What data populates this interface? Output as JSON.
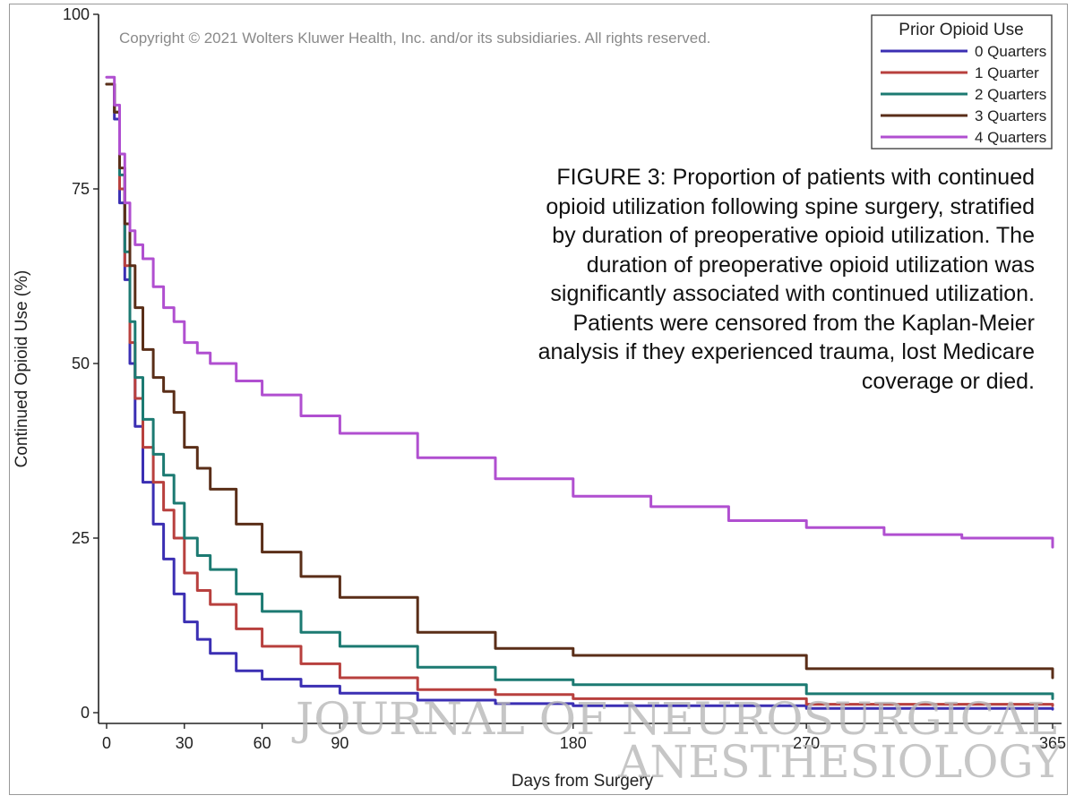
{
  "copyright": "Copyright © 2021 Wolters Kluwer Health, Inc. and/or its subsidiaries.  All rights reserved.",
  "caption": "FIGURE 3: Proportion of patients with continued opioid utilization following spine surgery, stratified by duration of preoperative opioid utilization. The duration of preoperative opioid utilization was significantly associated with continued utilization. Patients were censored from the Kaplan-Meier analysis if they experienced trauma, lost Medicare coverage or died.",
  "watermark": {
    "line1": "JOURNAL OF NEUROSURGICAL",
    "line2": "ANESTHESIOLOGY"
  },
  "chart_data": {
    "type": "line",
    "xlabel": "Days from Surgery",
    "ylabel": "Continued Opioid Use (%)",
    "xlim": [
      0,
      365
    ],
    "ylim": [
      0,
      100
    ],
    "xticks": [
      0,
      30,
      60,
      90,
      180,
      270,
      365
    ],
    "yticks": [
      0,
      25,
      50,
      75,
      100
    ],
    "grid": false,
    "legend": {
      "title": "Prior Opioid Use",
      "placement": "top-right"
    },
    "series": [
      {
        "name": "0 Quarters",
        "color": "#3b2fb3",
        "points": [
          [
            0,
            90
          ],
          [
            3,
            85
          ],
          [
            5,
            73
          ],
          [
            7,
            62
          ],
          [
            9,
            50
          ],
          [
            11,
            41
          ],
          [
            14,
            33
          ],
          [
            18,
            27
          ],
          [
            22,
            22
          ],
          [
            26,
            17
          ],
          [
            30,
            13
          ],
          [
            35,
            10.5
          ],
          [
            40,
            8.5
          ],
          [
            50,
            6
          ],
          [
            60,
            4.8
          ],
          [
            75,
            3.8
          ],
          [
            90,
            2.8
          ],
          [
            120,
            1.8
          ],
          [
            150,
            1.3
          ],
          [
            180,
            1.0
          ],
          [
            270,
            0.6
          ],
          [
            365,
            0.5
          ]
        ]
      },
      {
        "name": "1 Quarter",
        "color": "#b8403e",
        "points": [
          [
            0,
            90
          ],
          [
            3,
            86
          ],
          [
            5,
            75
          ],
          [
            7,
            64
          ],
          [
            9,
            53
          ],
          [
            11,
            45
          ],
          [
            14,
            38
          ],
          [
            18,
            33
          ],
          [
            22,
            29
          ],
          [
            26,
            25
          ],
          [
            30,
            20
          ],
          [
            35,
            17.5
          ],
          [
            40,
            15.5
          ],
          [
            50,
            12
          ],
          [
            60,
            9.5
          ],
          [
            75,
            7
          ],
          [
            90,
            5
          ],
          [
            120,
            3.3
          ],
          [
            150,
            2.6
          ],
          [
            180,
            2.0
          ],
          [
            270,
            1.2
          ],
          [
            365,
            1.0
          ]
        ]
      },
      {
        "name": "2 Quarters",
        "color": "#1c7a72",
        "points": [
          [
            0,
            90
          ],
          [
            3,
            86
          ],
          [
            5,
            77
          ],
          [
            7,
            66
          ],
          [
            9,
            56
          ],
          [
            11,
            48
          ],
          [
            14,
            42
          ],
          [
            18,
            37
          ],
          [
            22,
            34
          ],
          [
            26,
            30
          ],
          [
            30,
            25
          ],
          [
            35,
            22.5
          ],
          [
            40,
            20.5
          ],
          [
            50,
            17
          ],
          [
            60,
            14.5
          ],
          [
            75,
            11.5
          ],
          [
            90,
            9.5
          ],
          [
            120,
            6.5
          ],
          [
            150,
            4.7
          ],
          [
            180,
            4.0
          ],
          [
            270,
            2.7
          ],
          [
            365,
            2.0
          ]
        ]
      },
      {
        "name": "3 Quarters",
        "color": "#5a2e18",
        "points": [
          [
            0,
            90
          ],
          [
            3,
            86
          ],
          [
            5,
            78
          ],
          [
            7,
            70
          ],
          [
            9,
            64
          ],
          [
            11,
            58
          ],
          [
            14,
            52
          ],
          [
            18,
            48
          ],
          [
            22,
            46
          ],
          [
            26,
            43
          ],
          [
            30,
            38
          ],
          [
            35,
            35
          ],
          [
            40,
            32
          ],
          [
            50,
            27
          ],
          [
            60,
            23
          ],
          [
            75,
            19.5
          ],
          [
            90,
            16.5
          ],
          [
            120,
            11.5
          ],
          [
            150,
            9.2
          ],
          [
            180,
            8.2
          ],
          [
            270,
            6.3
          ],
          [
            365,
            5.0
          ]
        ]
      },
      {
        "name": "4 Quarters",
        "color": "#b04fd0",
        "points": [
          [
            0,
            91
          ],
          [
            3,
            87
          ],
          [
            5,
            80
          ],
          [
            7,
            73
          ],
          [
            9,
            69
          ],
          [
            11,
            67
          ],
          [
            14,
            65
          ],
          [
            18,
            61
          ],
          [
            22,
            58
          ],
          [
            26,
            56
          ],
          [
            30,
            53
          ],
          [
            35,
            51.5
          ],
          [
            40,
            50
          ],
          [
            50,
            47.5
          ],
          [
            60,
            45.5
          ],
          [
            75,
            42.5
          ],
          [
            90,
            40
          ],
          [
            120,
            36.5
          ],
          [
            150,
            33.5
          ],
          [
            180,
            31
          ],
          [
            210,
            29.5
          ],
          [
            240,
            27.5
          ],
          [
            270,
            26.5
          ],
          [
            300,
            25.5
          ],
          [
            330,
            25
          ],
          [
            365,
            23.7
          ]
        ]
      }
    ]
  }
}
